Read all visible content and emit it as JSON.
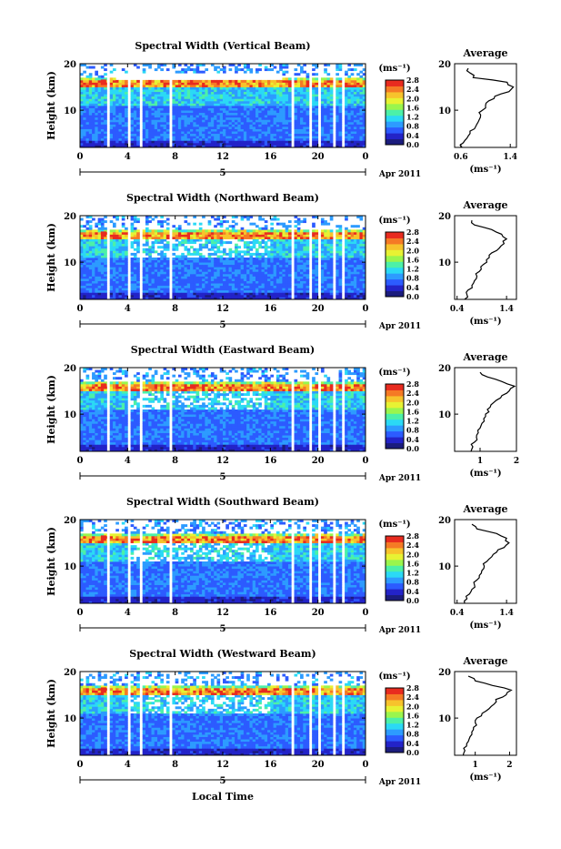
{
  "figure": {
    "xlabel_bottom": "Local Time",
    "date_label": "Apr 2011",
    "day_label": "5",
    "colorbar_unit": "(ms⁻¹)",
    "colorbar_ticks": [
      "0.0",
      "0.4",
      "0.8",
      "1.2",
      "1.6",
      "2.0",
      "2.4",
      "2.8"
    ],
    "colorbar_colors": [
      "#1b1c7d",
      "#2323c8",
      "#2c5bff",
      "#2d9bff",
      "#2bd9f5",
      "#4cf0a8",
      "#9af54d",
      "#e7f233",
      "#f7c32c",
      "#f57a25",
      "#e82b1f"
    ],
    "avg_title": "Average",
    "avg_xunit": "(ms⁻¹)"
  },
  "chart_data": [
    {
      "type": "heatmap",
      "title": "Spectral Width (Vertical Beam)",
      "xlabel": "",
      "ylabel": "Height (km)",
      "x_ticks": [
        "0",
        "4",
        "8",
        "12",
        "16",
        "20",
        "0"
      ],
      "y_ticks": [
        "10",
        "20"
      ],
      "xlim": [
        0,
        24
      ],
      "ylim": [
        2,
        20
      ],
      "colorbar_range": [
        0.0,
        2.8
      ],
      "average_profile": {
        "xlim": [
          0.5,
          1.5
        ],
        "x_ticks": [
          "0.6",
          "1.4"
        ],
        "heights": [
          2,
          3,
          4,
          5,
          6,
          7,
          8,
          9,
          10,
          11,
          12,
          13,
          14,
          15,
          16,
          17,
          18,
          19
        ],
        "values": [
          0.62,
          0.64,
          0.7,
          0.75,
          0.82,
          0.86,
          0.9,
          0.92,
          0.95,
          1.0,
          1.05,
          1.15,
          1.38,
          1.45,
          1.35,
          0.8,
          0.75,
          0.72
        ]
      }
    },
    {
      "type": "heatmap",
      "title": "Spectral Width (Northward Beam)",
      "xlabel": "",
      "ylabel": "Height (km)",
      "x_ticks": [
        "0",
        "4",
        "8",
        "12",
        "16",
        "20",
        "0"
      ],
      "y_ticks": [
        "10",
        "20"
      ],
      "xlim": [
        0,
        24
      ],
      "ylim": [
        2,
        20
      ],
      "colorbar_range": [
        0.0,
        2.8
      ],
      "average_profile": {
        "xlim": [
          0.35,
          1.6
        ],
        "x_ticks": [
          "0.4",
          "1.4"
        ],
        "heights": [
          2,
          3,
          4,
          5,
          6,
          7,
          8,
          9,
          10,
          11,
          12,
          13,
          14,
          15,
          16,
          17,
          18,
          19
        ],
        "values": [
          0.55,
          0.6,
          0.62,
          0.7,
          0.75,
          0.8,
          0.85,
          0.88,
          1.0,
          1.05,
          1.1,
          1.25,
          1.35,
          1.4,
          1.3,
          1.1,
          0.75,
          0.7
        ]
      }
    },
    {
      "type": "heatmap",
      "title": "Spectral Width (Eastward Beam)",
      "xlabel": "",
      "ylabel": "Height (km)",
      "x_ticks": [
        "0",
        "4",
        "8",
        "12",
        "16",
        "20",
        "0"
      ],
      "y_ticks": [
        "10",
        "20"
      ],
      "xlim": [
        0,
        24
      ],
      "ylim": [
        2,
        20
      ],
      "colorbar_range": [
        0.0,
        2.8
      ],
      "average_profile": {
        "xlim": [
          0.3,
          2.0
        ],
        "x_ticks": [
          "1",
          "2"
        ],
        "heights": [
          2,
          3,
          4,
          5,
          6,
          7,
          8,
          9,
          10,
          11,
          12,
          13,
          14,
          15,
          16,
          17,
          18,
          19
        ],
        "values": [
          0.75,
          0.8,
          0.85,
          0.9,
          0.95,
          1.0,
          1.05,
          1.1,
          1.15,
          1.2,
          1.3,
          1.45,
          1.6,
          1.8,
          1.95,
          1.6,
          1.2,
          1.0
        ]
      }
    },
    {
      "type": "heatmap",
      "title": "Spectral Width (Southward Beam)",
      "xlabel": "",
      "ylabel": "Height (km)",
      "x_ticks": [
        "0",
        "4",
        "8",
        "12",
        "16",
        "20",
        "0"
      ],
      "y_ticks": [
        "10",
        "20"
      ],
      "xlim": [
        0,
        24
      ],
      "ylim": [
        2,
        20
      ],
      "colorbar_range": [
        0.0,
        2.8
      ],
      "average_profile": {
        "xlim": [
          0.35,
          1.6
        ],
        "x_ticks": [
          "0.4",
          "1.4"
        ],
        "heights": [
          2,
          3,
          4,
          5,
          6,
          7,
          8,
          9,
          10,
          11,
          12,
          13,
          14,
          15,
          16,
          17,
          18,
          19
        ],
        "values": [
          0.55,
          0.6,
          0.65,
          0.7,
          0.75,
          0.8,
          0.85,
          0.9,
          0.95,
          1.0,
          1.1,
          1.2,
          1.35,
          1.45,
          1.4,
          1.2,
          0.8,
          0.7
        ]
      }
    },
    {
      "type": "heatmap",
      "title": "Spectral Width (Westward Beam)",
      "xlabel": "Local Time",
      "ylabel": "Height (km)",
      "x_ticks": [
        "0",
        "4",
        "8",
        "12",
        "16",
        "20",
        "0"
      ],
      "y_ticks": [
        "10",
        "20"
      ],
      "xlim": [
        0,
        24
      ],
      "ylim": [
        2,
        20
      ],
      "colorbar_range": [
        0.0,
        2.8
      ],
      "average_profile": {
        "xlim": [
          0.4,
          2.2
        ],
        "x_ticks": [
          "1",
          "2"
        ],
        "heights": [
          2,
          3,
          4,
          5,
          6,
          7,
          8,
          9,
          10,
          11,
          12,
          13,
          14,
          15,
          16,
          17,
          18,
          19
        ],
        "values": [
          0.65,
          0.7,
          0.75,
          0.8,
          0.85,
          0.9,
          0.95,
          1.0,
          1.05,
          1.2,
          1.4,
          1.55,
          1.6,
          1.9,
          2.05,
          1.5,
          1.0,
          0.8
        ]
      }
    }
  ]
}
